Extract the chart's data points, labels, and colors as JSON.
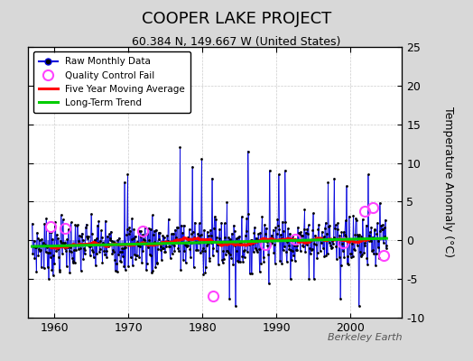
{
  "title": "COOPER LAKE PROJECT",
  "subtitle": "60.384 N, 149.667 W (United States)",
  "ylabel": "Temperature Anomaly (°C)",
  "watermark": "Berkeley Earth",
  "xlim": [
    1956.5,
    2007
  ],
  "ylim": [
    -10,
    25
  ],
  "yticks": [
    -10,
    -5,
    0,
    5,
    10,
    15,
    20,
    25
  ],
  "xticks": [
    1960,
    1970,
    1980,
    1990,
    2000
  ],
  "bg_color": "#d8d8d8",
  "plot_bg_color": "#ffffff",
  "raw_color": "#0000dd",
  "raw_marker_color": "#000000",
  "qc_fail_color": "#ff44ff",
  "moving_avg_color": "#ff0000",
  "trend_color": "#00cc00",
  "seed": 7,
  "n_months": 576,
  "start_year": 1957.0,
  "trend_slope": 0.025,
  "trend_intercept": -0.3
}
